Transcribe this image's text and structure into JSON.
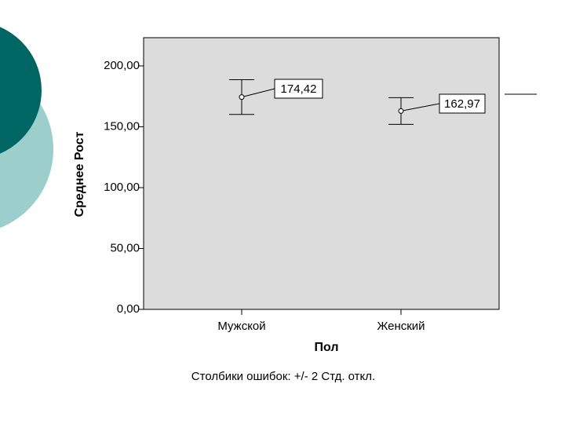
{
  "chart_data": {
    "type": "errorbar",
    "x_label": "Пол",
    "y_label": "Среднее Рост",
    "note": "Столбики ошибок: +/- 2 Стд. откл.",
    "categories": [
      "Мужской",
      "Женский"
    ],
    "values": [
      174.42,
      162.97
    ],
    "value_labels": [
      "174,42",
      "162,97"
    ],
    "errors": [
      14.3,
      11.0
    ],
    "ylim": [
      0,
      223.2
    ],
    "yticks": [
      {
        "value": 0,
        "label": "0,00"
      },
      {
        "value": 50,
        "label": "50,00"
      },
      {
        "value": 100,
        "label": "100,00"
      },
      {
        "value": 150,
        "label": "150,00"
      },
      {
        "value": 200,
        "label": "200,00"
      }
    ],
    "plot_background": "#dcdcdc",
    "color": "#000000"
  }
}
